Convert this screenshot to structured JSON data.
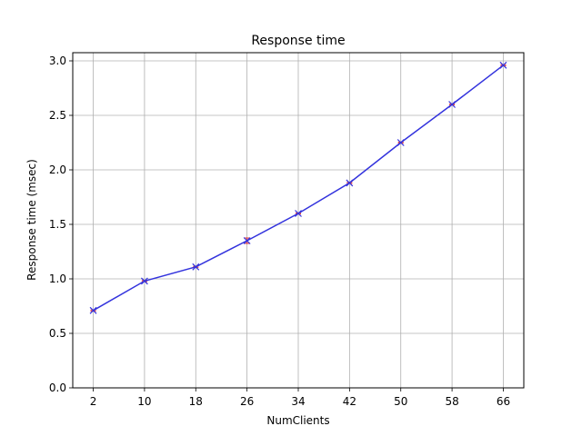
{
  "chart_data": {
    "type": "line",
    "title": "Response time",
    "xlabel": "NumClients",
    "ylabel": "Response time (msec)",
    "categories": [
      "2",
      "10",
      "18",
      "26",
      "34",
      "42",
      "50",
      "58",
      "66"
    ],
    "x": [
      2,
      10,
      18,
      26,
      34,
      42,
      50,
      58,
      66
    ],
    "series": [
      {
        "values": [
          0.71,
          0.98,
          1.11,
          1.35,
          1.6,
          1.88,
          2.25,
          2.6,
          2.96
        ],
        "error": [
          0.005,
          0.005,
          0.005,
          0.025,
          0.005,
          0.005,
          0.005,
          0.005,
          0.005
        ],
        "color": "#3333dd",
        "marker": "x"
      }
    ],
    "error_bar_color": "#dd3333",
    "ylim": [
      0,
      3.0
    ],
    "yticks": [
      "0.0",
      "0.5",
      "1.0",
      "1.5",
      "2.0",
      "2.5",
      "3.0"
    ],
    "grid": true
  }
}
